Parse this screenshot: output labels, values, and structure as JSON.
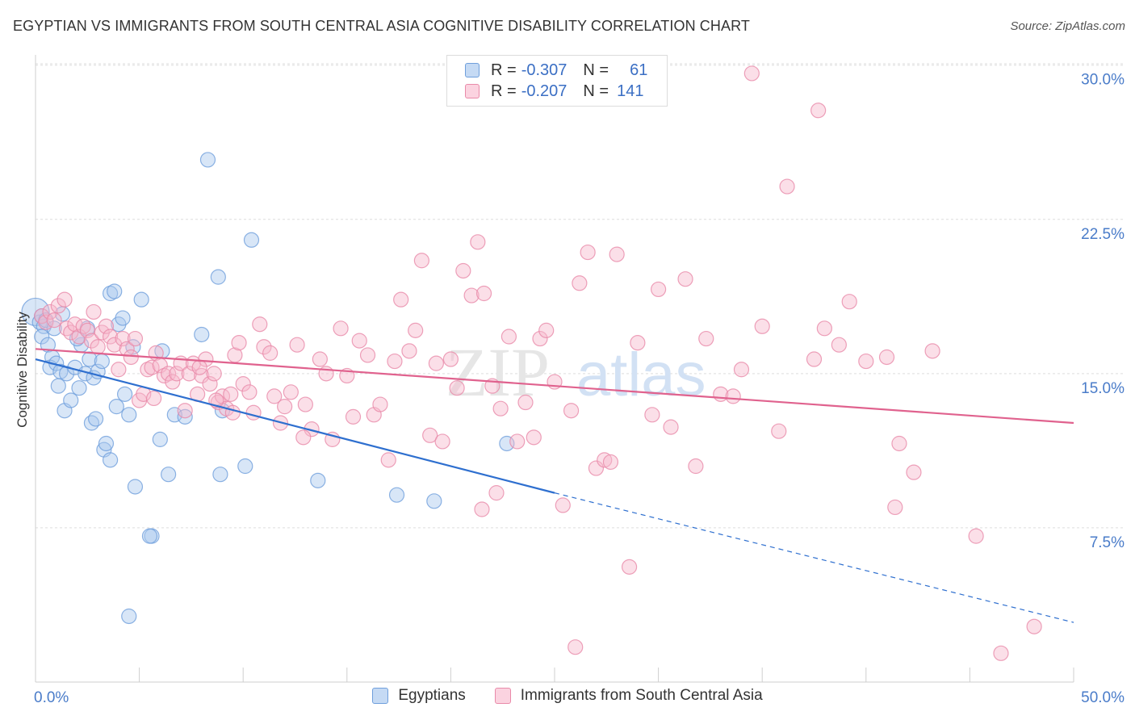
{
  "title": "EGYPTIAN VS IMMIGRANTS FROM SOUTH CENTRAL ASIA COGNITIVE DISABILITY CORRELATION CHART",
  "source": "Source: ZipAtlas.com",
  "watermark": {
    "zip": "ZIP",
    "atlas": "atlas"
  },
  "legend": {
    "rows": [
      {
        "r_label": "R =",
        "r_value": "-0.307",
        "n_label": "N =",
        "n_value": "61"
      },
      {
        "r_label": "R =",
        "r_value": "-0.207",
        "n_label": "N =",
        "n_value": "141"
      }
    ]
  },
  "colors": {
    "blue_fill": "#a9c8ee",
    "blue_stroke": "#6f9fdc",
    "blue_line": "#2e6fcf",
    "pink_fill": "#f7b8cc",
    "pink_stroke": "#e98aa9",
    "pink_line": "#e0628e",
    "tick_label": "#4a7cc9",
    "grid": "#dddddd"
  },
  "chart_data": {
    "type": "scatter",
    "title": "EGYPTIAN VS IMMIGRANTS FROM SOUTH CENTRAL ASIA COGNITIVE DISABILITY CORRELATION CHART",
    "xlabel": "",
    "ylabel": "Cognitive Disability",
    "xlim": [
      0,
      50
    ],
    "ylim": [
      0,
      30.5
    ],
    "x_tick_labels": [
      "0.0%",
      "50.0%"
    ],
    "y_ticks": [
      7.5,
      15.0,
      22.5,
      30.0
    ],
    "y_tick_labels": [
      "7.5%",
      "15.0%",
      "22.5%",
      "30.0%"
    ],
    "grid": true,
    "legend_position": "top-center",
    "series": [
      {
        "name": "Egyptians",
        "color": "#6f9fdc",
        "trend": {
          "x0": 0,
          "y0": 15.7,
          "x1": 25,
          "y1": 9.2,
          "x_dash_end": 50,
          "y_dash_end": 2.9
        },
        "points": [
          [
            0.0,
            18.0
          ],
          [
            0.2,
            17.5
          ],
          [
            0.3,
            17.8
          ],
          [
            0.4,
            17.3
          ],
          [
            0.5,
            17.6
          ],
          [
            0.3,
            16.8
          ],
          [
            0.6,
            16.4
          ],
          [
            0.8,
            15.8
          ],
          [
            0.7,
            15.3
          ],
          [
            1.0,
            15.5
          ],
          [
            1.2,
            15.1
          ],
          [
            1.5,
            15.0
          ],
          [
            1.1,
            14.4
          ],
          [
            1.4,
            13.2
          ],
          [
            1.7,
            13.7
          ],
          [
            1.9,
            15.3
          ],
          [
            2.1,
            14.3
          ],
          [
            2.4,
            15.0
          ],
          [
            2.2,
            16.4
          ],
          [
            2.0,
            16.7
          ],
          [
            2.6,
            15.7
          ],
          [
            2.8,
            14.8
          ],
          [
            3.0,
            15.1
          ],
          [
            3.2,
            15.6
          ],
          [
            2.7,
            12.6
          ],
          [
            2.9,
            12.8
          ],
          [
            3.3,
            11.3
          ],
          [
            3.4,
            11.6
          ],
          [
            3.6,
            18.9
          ],
          [
            3.8,
            19.0
          ],
          [
            4.0,
            17.4
          ],
          [
            4.2,
            17.7
          ],
          [
            3.9,
            13.4
          ],
          [
            4.3,
            14.0
          ],
          [
            4.5,
            13.0
          ],
          [
            4.7,
            16.3
          ],
          [
            3.6,
            10.8
          ],
          [
            4.8,
            9.5
          ],
          [
            5.1,
            18.6
          ],
          [
            6.1,
            16.1
          ],
          [
            6.0,
            11.8
          ],
          [
            6.4,
            10.1
          ],
          [
            6.7,
            13.0
          ],
          [
            7.2,
            12.9
          ],
          [
            5.6,
            7.1
          ],
          [
            5.5,
            7.1
          ],
          [
            4.5,
            3.2
          ],
          [
            8.0,
            16.9
          ],
          [
            8.3,
            25.4
          ],
          [
            8.8,
            19.7
          ],
          [
            8.9,
            10.1
          ],
          [
            9.0,
            13.2
          ],
          [
            10.4,
            21.5
          ],
          [
            10.1,
            10.5
          ],
          [
            13.6,
            9.8
          ],
          [
            17.4,
            9.1
          ],
          [
            19.2,
            8.8
          ],
          [
            22.7,
            11.6
          ],
          [
            2.5,
            17.2
          ],
          [
            1.3,
            17.9
          ],
          [
            0.9,
            17.2
          ]
        ]
      },
      {
        "name": "Immigrants from South Central Asia",
        "color": "#e98aa9",
        "trend": {
          "x0": 0,
          "y0": 16.2,
          "x1": 50,
          "y1": 12.6
        },
        "points": [
          [
            0.3,
            17.8
          ],
          [
            0.5,
            17.5
          ],
          [
            0.7,
            18.0
          ],
          [
            0.9,
            17.6
          ],
          [
            1.1,
            18.3
          ],
          [
            1.4,
            18.6
          ],
          [
            1.5,
            17.2
          ],
          [
            1.7,
            17.0
          ],
          [
            1.9,
            17.4
          ],
          [
            2.1,
            16.8
          ],
          [
            2.3,
            17.3
          ],
          [
            2.5,
            17.1
          ],
          [
            2.7,
            16.6
          ],
          [
            2.8,
            18.0
          ],
          [
            3.0,
            16.3
          ],
          [
            3.2,
            17.0
          ],
          [
            3.4,
            17.3
          ],
          [
            3.6,
            16.8
          ],
          [
            3.8,
            16.4
          ],
          [
            4.0,
            15.2
          ],
          [
            4.2,
            16.7
          ],
          [
            4.4,
            16.2
          ],
          [
            4.6,
            15.8
          ],
          [
            4.8,
            16.7
          ],
          [
            5.0,
            13.7
          ],
          [
            5.2,
            14.0
          ],
          [
            5.4,
            15.2
          ],
          [
            5.6,
            15.3
          ],
          [
            5.8,
            16.0
          ],
          [
            6.0,
            15.4
          ],
          [
            6.2,
            14.9
          ],
          [
            6.4,
            15.0
          ],
          [
            6.6,
            14.6
          ],
          [
            6.8,
            15.0
          ],
          [
            7.0,
            15.5
          ],
          [
            7.2,
            13.2
          ],
          [
            7.4,
            15.0
          ],
          [
            7.6,
            15.5
          ],
          [
            7.8,
            14.0
          ],
          [
            8.0,
            14.9
          ],
          [
            8.2,
            15.7
          ],
          [
            8.4,
            14.5
          ],
          [
            8.6,
            15.0
          ],
          [
            8.8,
            13.6
          ],
          [
            9.0,
            13.9
          ],
          [
            9.2,
            13.3
          ],
          [
            9.4,
            14.0
          ],
          [
            9.6,
            15.9
          ],
          [
            9.8,
            16.5
          ],
          [
            10.0,
            14.5
          ],
          [
            10.3,
            14.1
          ],
          [
            10.5,
            13.1
          ],
          [
            10.8,
            17.4
          ],
          [
            11.0,
            16.3
          ],
          [
            11.3,
            16.0
          ],
          [
            11.5,
            13.9
          ],
          [
            11.8,
            12.6
          ],
          [
            12.0,
            13.4
          ],
          [
            12.3,
            14.1
          ],
          [
            12.6,
            16.4
          ],
          [
            13.0,
            13.5
          ],
          [
            13.3,
            12.3
          ],
          [
            13.7,
            15.7
          ],
          [
            14.0,
            15.0
          ],
          [
            14.3,
            11.8
          ],
          [
            14.7,
            17.2
          ],
          [
            15.0,
            14.9
          ],
          [
            15.3,
            12.9
          ],
          [
            15.6,
            16.6
          ],
          [
            16.0,
            15.9
          ],
          [
            16.3,
            13.0
          ],
          [
            16.6,
            13.5
          ],
          [
            17.0,
            10.8
          ],
          [
            17.3,
            15.6
          ],
          [
            17.6,
            18.6
          ],
          [
            18.0,
            16.1
          ],
          [
            18.3,
            17.1
          ],
          [
            18.6,
            20.5
          ],
          [
            19.0,
            12.0
          ],
          [
            19.3,
            15.5
          ],
          [
            19.6,
            11.7
          ],
          [
            20.0,
            15.7
          ],
          [
            20.3,
            14.3
          ],
          [
            20.6,
            20.0
          ],
          [
            21.0,
            18.8
          ],
          [
            21.3,
            21.4
          ],
          [
            21.6,
            18.9
          ],
          [
            22.0,
            14.4
          ],
          [
            22.4,
            13.3
          ],
          [
            22.8,
            16.8
          ],
          [
            23.2,
            11.7
          ],
          [
            23.6,
            13.6
          ],
          [
            24.0,
            11.9
          ],
          [
            24.3,
            16.7
          ],
          [
            24.6,
            17.1
          ],
          [
            25.0,
            14.6
          ],
          [
            25.4,
            8.6
          ],
          [
            25.8,
            13.2
          ],
          [
            26.2,
            19.4
          ],
          [
            26.6,
            20.9
          ],
          [
            27.0,
            10.4
          ],
          [
            27.4,
            10.8
          ],
          [
            28.0,
            20.8
          ],
          [
            29.0,
            16.5
          ],
          [
            30.0,
            19.1
          ],
          [
            30.6,
            12.4
          ],
          [
            31.3,
            19.6
          ],
          [
            31.8,
            10.5
          ],
          [
            32.3,
            16.7
          ],
          [
            33.0,
            14.0
          ],
          [
            33.6,
            13.9
          ],
          [
            34.0,
            15.2
          ],
          [
            35.0,
            17.3
          ],
          [
            35.8,
            12.2
          ],
          [
            36.2,
            24.1
          ],
          [
            37.5,
            15.7
          ],
          [
            38.0,
            17.2
          ],
          [
            38.7,
            16.4
          ],
          [
            39.2,
            18.5
          ],
          [
            40.0,
            15.6
          ],
          [
            41.0,
            15.8
          ],
          [
            41.6,
            11.6
          ],
          [
            42.3,
            10.2
          ],
          [
            43.2,
            16.1
          ],
          [
            45.3,
            7.1
          ],
          [
            48.1,
            2.7
          ],
          [
            41.4,
            8.5
          ],
          [
            46.5,
            1.4
          ],
          [
            34.5,
            29.6
          ],
          [
            37.7,
            27.8
          ],
          [
            22.2,
            9.2
          ],
          [
            21.5,
            8.4
          ],
          [
            26.0,
            1.7
          ],
          [
            28.6,
            5.6
          ],
          [
            29.7,
            13.0
          ],
          [
            27.7,
            10.7
          ],
          [
            12.9,
            11.9
          ],
          [
            8.7,
            13.7
          ],
          [
            5.7,
            13.8
          ],
          [
            9.5,
            13.1
          ],
          [
            7.9,
            15.3
          ]
        ]
      }
    ]
  }
}
